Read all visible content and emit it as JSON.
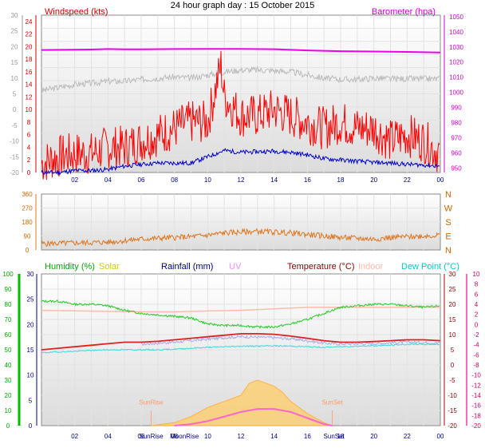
{
  "title": "24 hour graph day : 15 October 2015",
  "chart_data": [
    {
      "type": "line",
      "panel": "wind-barometer",
      "left_label": "Windspeed (kts)",
      "right_label": "Barometer (hpa)",
      "x_ticks": [
        "02",
        "04",
        "06",
        "08",
        "10",
        "12",
        "14",
        "16",
        "18",
        "20",
        "22",
        "00"
      ],
      "y_outer_ticks": [
        "30",
        "25",
        "20",
        "15",
        "10",
        "5",
        "0",
        "-5",
        "-10",
        "-15",
        "-20"
      ],
      "y_wind_ticks": [
        "24",
        "22",
        "20",
        "18",
        "16",
        "14",
        "12",
        "10",
        "8",
        "6",
        "4",
        "2",
        "0"
      ],
      "y_baro_ticks": [
        "1050",
        "1040",
        "1030",
        "1020",
        "1010",
        "1000",
        "990",
        "980",
        "970",
        "960",
        "950"
      ],
      "ylim_wind": [
        0,
        25
      ],
      "ylim_baro": [
        947,
        1051
      ],
      "series": [
        {
          "key": "barometer",
          "color": "#ee00ee",
          "x": [
            0,
            3,
            4,
            5,
            6,
            8,
            10,
            12,
            14,
            16,
            18,
            20,
            22,
            24
          ],
          "y": [
            1028.0,
            1028.3,
            1028.6,
            1028.4,
            1028.4,
            1028.6,
            1028.7,
            1028.7,
            1028.5,
            1027.7,
            1027.2,
            1027.0,
            1026.7,
            1026.3
          ]
        },
        {
          "key": "gust",
          "color": "#ff0000",
          "x": [
            0,
            1,
            2,
            3,
            4,
            5,
            6,
            7,
            8,
            9,
            10,
            10.8,
            11,
            12,
            13,
            14,
            15,
            16,
            17,
            18,
            19,
            20,
            21,
            22,
            23,
            24
          ],
          "y": [
            1.5,
            2.5,
            3,
            3,
            4,
            4,
            5,
            6,
            7,
            8,
            8,
            17,
            12,
            9,
            9,
            10,
            9,
            8,
            7,
            8,
            7,
            7,
            5,
            6,
            5,
            3
          ]
        },
        {
          "key": "grey-trace",
          "color": "#bbbbbb",
          "x": [
            0,
            1,
            2,
            3,
            4,
            5,
            6,
            7,
            8,
            9,
            10,
            11,
            12,
            13,
            14,
            15,
            16,
            17,
            18,
            19,
            20,
            21,
            22,
            23,
            24
          ],
          "y": [
            13,
            13.5,
            14,
            14.2,
            14.5,
            14.5,
            14.8,
            15,
            15.2,
            15,
            15.5,
            16,
            16.3,
            16.3,
            16.2,
            16,
            15.5,
            15,
            14.8,
            14.8,
            15,
            14.9,
            14.9,
            14.9,
            14.9
          ]
        },
        {
          "key": "windspeed",
          "color": "#0000cc",
          "x": [
            0,
            1,
            2,
            3,
            4,
            5,
            6,
            7,
            8,
            9,
            10,
            11,
            12,
            13,
            14,
            15,
            16,
            17,
            18,
            19,
            20,
            21,
            22,
            23,
            24
          ],
          "y": [
            0,
            0,
            0.3,
            0.3,
            0.5,
            1,
            1.3,
            1.5,
            1.5,
            1.5,
            2.5,
            3.5,
            3.2,
            3.3,
            3.4,
            3.2,
            2.8,
            2.2,
            2,
            1.8,
            1.6,
            1.5,
            1.3,
            1.2,
            1
          ]
        }
      ]
    },
    {
      "type": "line",
      "panel": "wind-direction",
      "y_ticks": [
        "360",
        "270",
        "180",
        "90",
        "0"
      ],
      "compass_labels": [
        "N",
        "W",
        "S",
        "E",
        "N"
      ],
      "ylim": [
        0,
        360
      ],
      "series": [
        {
          "key": "direction",
          "color": "#dd7722",
          "x": [
            0,
            2,
            4,
            5,
            6,
            7,
            8,
            9,
            10,
            11,
            12,
            13,
            14,
            15,
            16,
            17,
            18,
            19,
            20,
            21,
            22,
            23,
            24
          ],
          "y": [
            40,
            45,
            50,
            60,
            70,
            75,
            80,
            85,
            95,
            110,
            115,
            120,
            115,
            110,
            100,
            90,
            80,
            75,
            70,
            80,
            85,
            90,
            95
          ]
        }
      ]
    },
    {
      "type": "line",
      "panel": "temperature-humidity",
      "legend": [
        {
          "label": "Humidity (%)",
          "color": "#00aa00"
        },
        {
          "label": "Solar",
          "color": "#cccc00"
        },
        {
          "label": "Rainfall (mm)",
          "color": "#000088"
        },
        {
          "label": "UV",
          "color": "#ff88ff"
        },
        {
          "label": "Temperature (°C)",
          "color": "#880000"
        },
        {
          "label": "Indoor",
          "color": "#ffbbaa"
        },
        {
          "label": "Dew Point (°C)",
          "color": "#00cccc"
        }
      ],
      "x_ticks": [
        "02",
        "04",
        "06",
        "08",
        "10",
        "12",
        "14",
        "16",
        "18",
        "20",
        "22",
        "00"
      ],
      "hum_ticks": [
        "100",
        "90",
        "80",
        "70",
        "60",
        "50",
        "40",
        "30",
        "20",
        "10",
        "0"
      ],
      "rain_ticks": [
        "30",
        "25",
        "20",
        "15",
        "10",
        "5",
        "0"
      ],
      "temp_ticks": [
        "10",
        "8",
        "6",
        "4",
        "2",
        "0",
        "-2",
        "-4",
        "-6",
        "-8",
        "-10",
        "-12",
        "-14",
        "-16",
        "-18",
        "-20"
      ],
      "right_ticks": [
        "30",
        "25",
        "20",
        "15",
        "10",
        "5",
        "0",
        "-5",
        "-10",
        "-15",
        "-20"
      ],
      "ylim_temp": [
        -20,
        30
      ],
      "annotations": [
        {
          "x": 6.6,
          "label": "SunRise",
          "color": "#ff9966"
        },
        {
          "x": 17.5,
          "label": "SunSet",
          "color": "#ff9966"
        }
      ],
      "bottom_labels": [
        {
          "x": 6.6,
          "label": "SunRise"
        },
        {
          "x": 8.6,
          "label": "MoonRise"
        },
        {
          "x": 17.6,
          "label": "SunSet"
        }
      ],
      "series": [
        {
          "key": "indoor",
          "color": "#ffbbaa",
          "x": [
            0,
            6,
            8,
            10,
            12,
            14,
            16,
            18,
            20,
            22,
            24
          ],
          "y": [
            18,
            17.5,
            17.5,
            17.8,
            18,
            18.5,
            19,
            19,
            19,
            19,
            19
          ]
        },
        {
          "key": "humidity",
          "color": "#22cc22",
          "x": [
            0,
            1,
            2,
            3,
            4,
            5,
            6,
            7,
            8,
            9,
            10,
            11,
            12,
            13,
            14,
            15,
            16,
            17,
            18,
            19,
            20,
            21,
            22,
            23,
            24
          ],
          "y": [
            21,
            21,
            20,
            20,
            19.5,
            18,
            17,
            16.5,
            16,
            15.5,
            13.5,
            13,
            13,
            12.5,
            12.5,
            13.5,
            15,
            17,
            19,
            19.5,
            20,
            20,
            19.5,
            19,
            19.5
          ]
        },
        {
          "key": "temperature",
          "color": "#dd2222",
          "x": [
            0,
            1,
            2,
            3,
            4,
            5,
            6,
            7,
            8,
            9,
            10,
            11,
            12,
            13,
            14,
            15,
            16,
            17,
            18,
            19,
            20,
            21,
            22,
            23,
            24
          ],
          "y": [
            5,
            5.5,
            6,
            6.5,
            7,
            7.5,
            7.5,
            7.8,
            8.3,
            8.8,
            9.3,
            9.8,
            10.3,
            10.3,
            10.1,
            9.5,
            8.8,
            8,
            7.5,
            7.5,
            7.7,
            8,
            8.3,
            8.3,
            8
          ]
        },
        {
          "key": "apparent",
          "color": "#aaaaee",
          "x": [
            6,
            7,
            8,
            9,
            10,
            11,
            12,
            13,
            14,
            15,
            16,
            17,
            18,
            19,
            20,
            21,
            22,
            23,
            24
          ],
          "y": [
            6.8,
            7.2,
            7.5,
            8,
            8.5,
            9,
            9.3,
            9.2,
            9,
            8.6,
            8,
            7.2,
            6.9,
            7,
            7,
            7.3,
            7.5,
            7.4,
            7.2
          ]
        },
        {
          "key": "dewpoint",
          "color": "#33dddd",
          "x": [
            0,
            1,
            2,
            3,
            4,
            5,
            6,
            7,
            8,
            9,
            10,
            11,
            12,
            13,
            14,
            15,
            16,
            17,
            18,
            19,
            20,
            21,
            22,
            23,
            24
          ],
          "y": [
            4,
            4.3,
            4.5,
            4.8,
            5,
            5,
            5,
            5,
            5.2,
            5.5,
            5.8,
            6,
            6.2,
            6.2,
            6.3,
            6.2,
            6,
            5.8,
            6,
            6.2,
            6.3,
            6.5,
            6.8,
            6.8,
            6.8
          ]
        },
        {
          "key": "solar",
          "color": "#ffcc66",
          "x": [
            6.6,
            8,
            9,
            10,
            11,
            12,
            12.5,
            13,
            13.5,
            14,
            14.5,
            15,
            16,
            17,
            17.5
          ],
          "y": [
            -20,
            -19,
            -17,
            -14,
            -12,
            -10,
            -6,
            -5,
            -6,
            -7,
            -9,
            -12,
            -16,
            -19,
            -20
          ]
        },
        {
          "key": "uv",
          "color": "#ff66cc",
          "x": [
            8,
            9,
            10,
            11,
            12,
            13,
            14,
            15,
            16,
            17,
            17.5
          ],
          "y": [
            -20,
            -19.5,
            -18.5,
            -17,
            -15.5,
            -14.5,
            -14.5,
            -15.5,
            -17.5,
            -19.5,
            -20
          ]
        }
      ]
    }
  ]
}
